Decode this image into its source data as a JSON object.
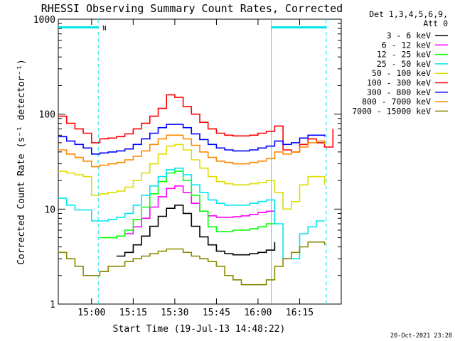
{
  "chart_data": {
    "type": "line",
    "title": "RHESSI Observing Summary Count Rates, Corrected",
    "xlabel": "Start Time (19-Jul-13 14:48:22)",
    "ylabel": "Corrected Count Rate (s⁻¹ detector⁻¹)",
    "x_unit": "minutes",
    "xlim": [
      14.8,
      16.5
    ],
    "ylim": [
      1,
      1000
    ],
    "yscale": "log",
    "x_ticks": [
      {
        "value": 15.0,
        "label": "15:00"
      },
      {
        "value": 15.25,
        "label": "15:15"
      },
      {
        "value": 15.5,
        "label": "15:30"
      },
      {
        "value": 15.75,
        "label": "15:45"
      },
      {
        "value": 16.0,
        "label": "16:00"
      },
      {
        "value": 16.25,
        "label": "16:15"
      }
    ],
    "y_ticks": [
      {
        "value": 1,
        "label": "1"
      },
      {
        "value": 10,
        "label": "10"
      },
      {
        "value": 100,
        "label": "100"
      },
      {
        "value": 1000,
        "label": "1000"
      }
    ],
    "legend": {
      "header": [
        "Det 1,3,4,5,6,9,",
        "Att 0"
      ],
      "placement": "right"
    },
    "footer": "20-Oct-2021 23:28",
    "annotations": [
      {
        "text": "N",
        "x": 15.04,
        "y": 820,
        "color": "#00e5ee"
      }
    ],
    "vertical_lines": [
      {
        "x": 15.04,
        "color": "#00e5ee",
        "style": "dashed"
      },
      {
        "x": 16.08,
        "color": "#00e5ee",
        "style": "solid"
      },
      {
        "x": 16.41,
        "color": "#00e5ee",
        "style": "dashed"
      }
    ],
    "horizontal_segments": [
      {
        "x0": 14.8,
        "x1": 15.04,
        "y": 820,
        "color": "#00e5ee"
      },
      {
        "x0": 16.08,
        "x1": 16.41,
        "y": 820,
        "color": "#00e5ee"
      }
    ],
    "x": [
      14.8,
      14.85,
      14.9,
      14.95,
      15.0,
      15.05,
      15.1,
      15.15,
      15.2,
      15.25,
      15.3,
      15.35,
      15.4,
      15.45,
      15.5,
      15.55,
      15.6,
      15.65,
      15.7,
      15.75,
      15.8,
      15.85,
      15.9,
      15.95,
      16.0,
      16.05,
      16.1,
      16.15,
      16.2,
      16.25,
      16.3,
      16.35,
      16.4,
      16.45
    ],
    "series": [
      {
        "name": "3 - 6 keV",
        "color": "#000000",
        "values": [
          null,
          null,
          null,
          null,
          null,
          null,
          null,
          3.2,
          3.5,
          4.2,
          5.2,
          6.6,
          8.4,
          10.2,
          11.0,
          9.0,
          6.6,
          5.1,
          4.2,
          3.6,
          3.4,
          3.3,
          3.3,
          3.4,
          3.5,
          3.7,
          4.5,
          null,
          null,
          null,
          null,
          null,
          null,
          null
        ]
      },
      {
        "name": "6 - 12 keV",
        "color": "#ff00ff",
        "values": [
          null,
          null,
          null,
          null,
          null,
          null,
          null,
          null,
          5.5,
          6.5,
          8.0,
          10.5,
          13.5,
          16.5,
          17.5,
          15.0,
          11.5,
          9.5,
          8.5,
          8.2,
          8.2,
          8.3,
          8.5,
          8.8,
          9.2,
          9.5,
          11.0,
          null,
          null,
          null,
          null,
          null,
          null,
          null
        ]
      },
      {
        "name": "12 - 25 keV",
        "color": "#00ff00",
        "values": [
          null,
          null,
          null,
          null,
          null,
          5.0,
          5.0,
          5.2,
          6.0,
          7.8,
          10.5,
          14.5,
          19.5,
          24.0,
          25.0,
          20.0,
          14.0,
          9.5,
          6.5,
          5.8,
          5.8,
          6.0,
          6.0,
          6.2,
          6.5,
          7.0,
          9.0,
          null,
          null,
          null,
          null,
          null,
          null,
          null
        ]
      },
      {
        "name": "25 - 50 keV",
        "color": "#00e5ee",
        "values": [
          13.0,
          11.0,
          9.8,
          9.8,
          7.5,
          7.5,
          7.8,
          8.2,
          9.0,
          11.0,
          14.0,
          17.5,
          22.0,
          26.0,
          27.0,
          23.0,
          18.0,
          15.0,
          12.5,
          11.5,
          11.0,
          11.0,
          11.0,
          11.5,
          12.0,
          12.5,
          7.0,
          3.0,
          3.0,
          5.5,
          6.5,
          7.5,
          7.5,
          null
        ]
      },
      {
        "name": "50 - 100 keV",
        "color": "#dddd00",
        "values": [
          25.0,
          24.0,
          23.0,
          22.0,
          14.0,
          14.5,
          15.0,
          15.5,
          17.0,
          20.0,
          24.0,
          30.0,
          38.0,
          46.0,
          48.0,
          42.0,
          33.0,
          27.0,
          22.0,
          19.5,
          18.5,
          18.0,
          18.0,
          18.5,
          19.0,
          20.0,
          15.0,
          10.0,
          12.0,
          18.0,
          22.0,
          22.0,
          18.0,
          null
        ]
      },
      {
        "name": "100 - 300 keV",
        "color": "#ff0000",
        "values": [
          95.0,
          80.0,
          70.0,
          63.0,
          50.0,
          55.0,
          56.0,
          58.0,
          62.0,
          70.0,
          80.0,
          95.0,
          115.0,
          160.0,
          150.0,
          120.0,
          100.0,
          82.0,
          70.0,
          63.0,
          60.0,
          59.0,
          59.0,
          60.0,
          63.0,
          66.0,
          75.0,
          42.0,
          40.0,
          48.0,
          55.0,
          50.0,
          45.0,
          70.0
        ]
      },
      {
        "name": "300 - 800 keV",
        "color": "#0000ff",
        "values": [
          58.0,
          52.0,
          48.0,
          44.0,
          38.0,
          39.0,
          40.0,
          41.0,
          43.0,
          48.0,
          55.0,
          63.0,
          72.0,
          78.0,
          78.0,
          72.0,
          62.0,
          54.0,
          48.0,
          44.0,
          42.0,
          41.0,
          41.0,
          42.0,
          44.0,
          46.0,
          52.0,
          48.0,
          50.0,
          56.0,
          60.0,
          60.0,
          58.0,
          null
        ]
      },
      {
        "name": "800 - 7000 keV",
        "color": "#ff8800",
        "values": [
          42.0,
          38.0,
          35.0,
          32.0,
          28.0,
          29.0,
          30.0,
          31.0,
          33.0,
          36.0,
          41.0,
          48.0,
          55.0,
          60.0,
          60.0,
          55.0,
          47.0,
          40.0,
          35.0,
          32.0,
          31.0,
          30.0,
          30.0,
          31.0,
          32.0,
          34.0,
          40.0,
          38.0,
          40.0,
          45.0,
          50.0,
          52.0,
          48.0,
          null
        ]
      },
      {
        "name": "7000 - 15000 keV",
        "color": "#888800",
        "values": [
          3.5,
          3.0,
          2.5,
          2.0,
          2.0,
          2.2,
          2.5,
          2.5,
          2.8,
          3.0,
          3.2,
          3.4,
          3.6,
          3.8,
          3.8,
          3.5,
          3.2,
          3.0,
          2.8,
          2.5,
          2.0,
          1.8,
          1.6,
          1.6,
          1.6,
          1.8,
          2.5,
          3.0,
          3.5,
          4.0,
          4.5,
          4.5,
          4.2,
          null
        ]
      }
    ]
  }
}
